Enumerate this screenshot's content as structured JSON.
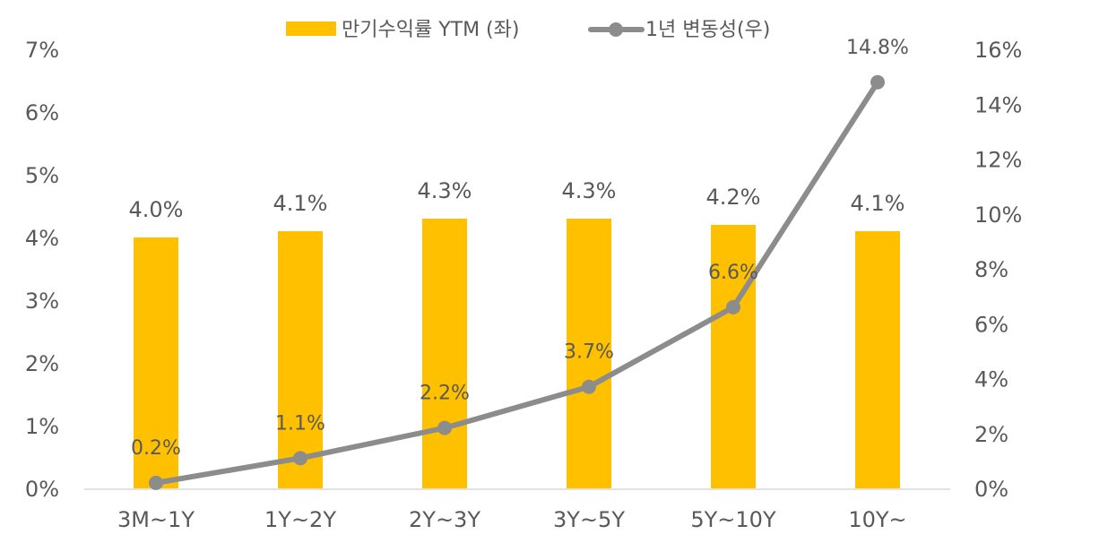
{
  "chart_data": {
    "type": "bar+line",
    "categories": [
      "3M~1Y",
      "1Y~2Y",
      "2Y~3Y",
      "3Y~5Y",
      "5Y~10Y",
      "10Y~"
    ],
    "series": [
      {
        "name": "만기수익률 YTM (좌)",
        "type": "bar",
        "axis": "left",
        "color": "#FFC000",
        "values": [
          4.0,
          4.1,
          4.3,
          4.3,
          4.2,
          4.1
        ],
        "labels": [
          "4.0%",
          "4.1%",
          "4.3%",
          "4.3%",
          "4.2%",
          "4.1%"
        ]
      },
      {
        "name": "1년 변동성(우)",
        "type": "line",
        "axis": "right",
        "color": "#8C8C8C",
        "values": [
          0.2,
          1.1,
          2.2,
          3.7,
          6.6,
          14.8
        ],
        "labels": [
          "0.2%",
          "1.1%",
          "2.2%",
          "3.7%",
          "6.6%",
          "14.8%"
        ]
      }
    ],
    "left_axis": {
      "ylim": [
        0,
        7
      ],
      "ticks": [
        "0%",
        "1%",
        "2%",
        "3%",
        "4%",
        "5%",
        "6%",
        "7%"
      ]
    },
    "right_axis": {
      "ylim": [
        0,
        16
      ],
      "ticks": [
        "0%",
        "2%",
        "4%",
        "6%",
        "8%",
        "10%",
        "12%",
        "14%",
        "16%"
      ]
    },
    "legend": "top",
    "grid": false
  }
}
